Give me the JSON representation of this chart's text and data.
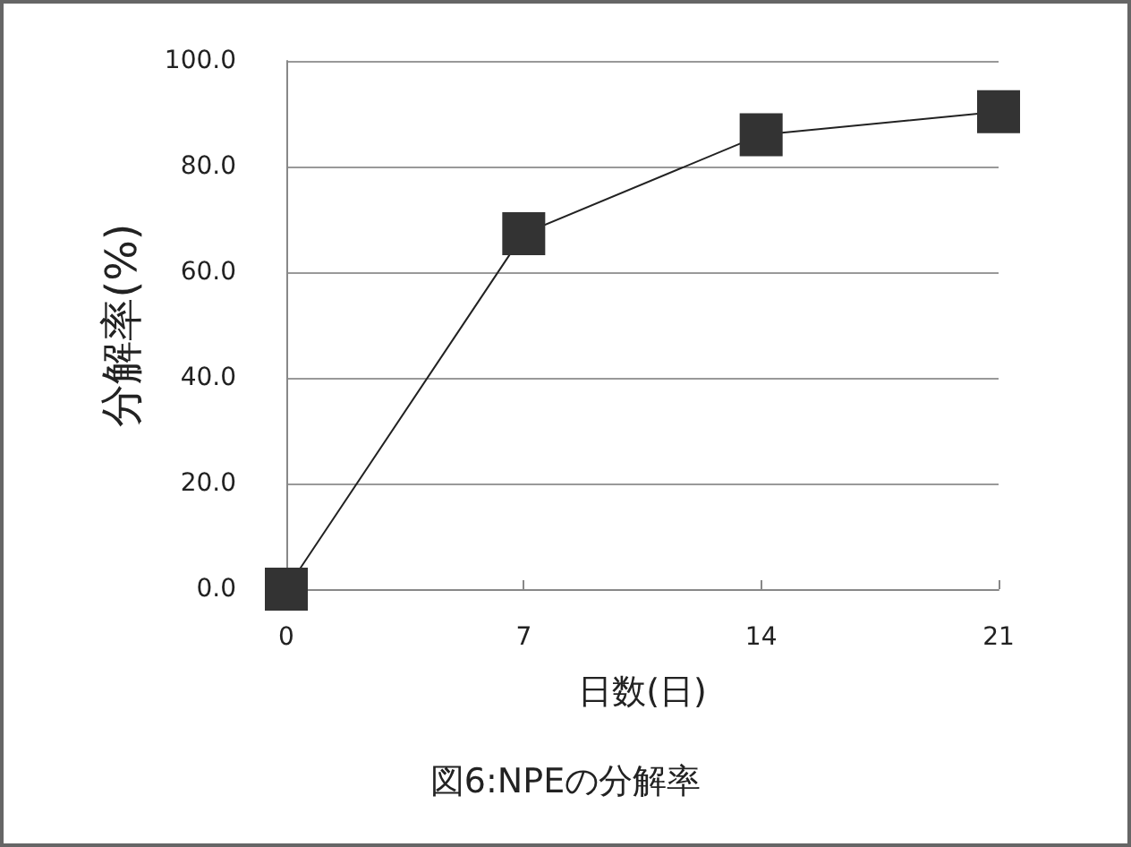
{
  "chart_data": {
    "type": "line",
    "title": "図6:NPEの分解率",
    "xlabel": "日数(日)",
    "ylabel": "分解率(%)",
    "categories": [
      "0",
      "7",
      "14",
      "21"
    ],
    "series": [
      {
        "color": "#333333",
        "values": [
          0,
          67.3,
          86.0,
          90.4
        ]
      }
    ],
    "ylim": [
      0,
      100
    ],
    "yticks": [
      {
        "value": 0,
        "label": "0.0"
      },
      {
        "value": 20,
        "label": "20.0"
      },
      {
        "value": 40,
        "label": "40.0"
      },
      {
        "value": 60,
        "label": "60.0"
      },
      {
        "value": 80,
        "label": "80.0"
      },
      {
        "value": 100,
        "label": "100.0"
      }
    ],
    "grid": "y",
    "marker": "square",
    "line_style": "solid"
  }
}
